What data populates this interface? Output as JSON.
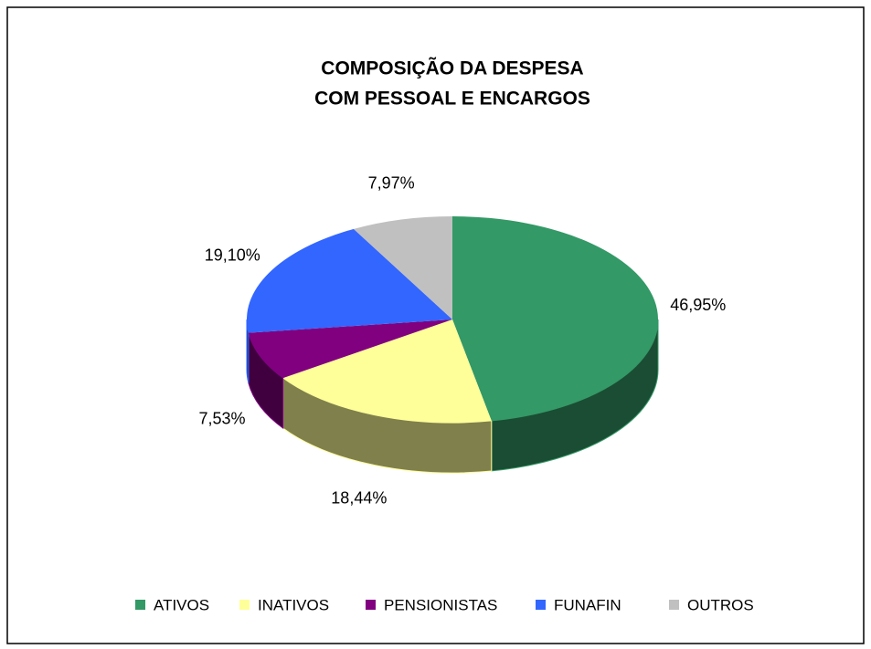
{
  "chart_data": {
    "type": "pie",
    "title": [
      "COMPOSIÇÃO DA DESPESA",
      "COM PESSOAL E ENCARGOS"
    ],
    "categories": [
      "ATIVOS",
      "INATIVOS",
      "PENSIONISTAS",
      "FUNAFIN",
      "OUTROS"
    ],
    "values": [
      46.95,
      18.44,
      7.53,
      19.1,
      7.97
    ],
    "value_labels": [
      "46,95%",
      "18,44%",
      "7,53%",
      "19,10%",
      "7,97%"
    ],
    "colors": [
      "#339966",
      "#ffff99",
      "#800080",
      "#3366ff",
      "#c0c0c0"
    ],
    "legend": "bottom"
  }
}
